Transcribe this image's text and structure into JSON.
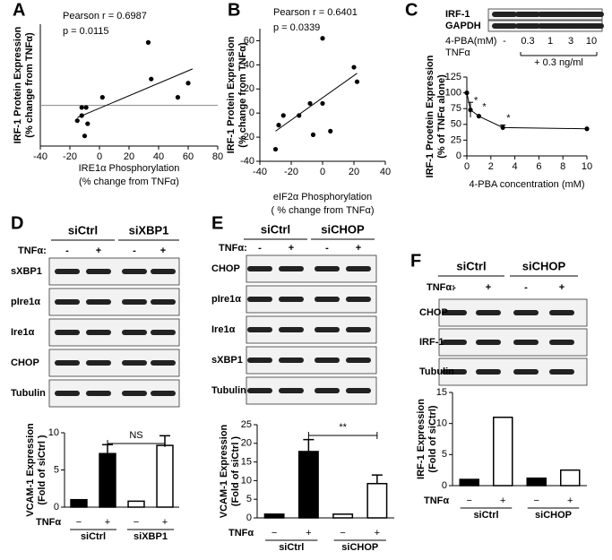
{
  "chart_data": [
    {
      "type": "scatter",
      "panel_label": "A",
      "annotations": [
        "Pearson r = 0.6987",
        "p = 0.0115"
      ],
      "xlabel": [
        "IRE1α Phosphorylation",
        "(% change from TNFα)"
      ],
      "ylabel": [
        "IRF-1 Protein Expression",
        "(% change from TNFα)"
      ],
      "x": [
        -15,
        -12,
        -12,
        -9,
        -8,
        -10,
        2,
        33,
        35,
        53,
        60
      ],
      "y": [
        -15,
        -10,
        -2,
        -2,
        -18,
        -30,
        8,
        62,
        26,
        8,
        22
      ],
      "xlim": [
        -40,
        80
      ],
      "xticks": [
        -40,
        -20,
        0,
        20,
        40,
        60,
        80
      ],
      "ylim": [
        -40,
        80
      ],
      "zero_line": true,
      "fit": {
        "x": [
          -15,
          63
        ],
        "y": [
          -12,
          36
        ]
      },
      "color": "#000000"
    },
    {
      "type": "scatter",
      "panel_label": "B",
      "annotations": [
        "Pearson r = 0.6401",
        "p = 0.0339"
      ],
      "xlabel": [
        "eIF2α Phosphorylation",
        "( % change  from TNFα)"
      ],
      "ylabel": [
        "IRF-1 Protein Expression",
        "(% change from TNFα)"
      ],
      "x": [
        -30,
        -28,
        -25,
        -15,
        -8,
        -6,
        0,
        0,
        5,
        20,
        22
      ],
      "y": [
        -30,
        -10,
        -2,
        -2,
        8,
        -18,
        62,
        8,
        -15,
        38,
        26
      ],
      "xlim": [
        -40,
        40
      ],
      "xticks": [
        -40,
        -20,
        0,
        20,
        40
      ],
      "ylim": [
        -40,
        70
      ],
      "yticks": [
        -40,
        -20,
        0,
        20,
        40,
        60
      ],
      "fit": {
        "x": [
          -30,
          22
        ],
        "y": [
          -15,
          33
        ]
      },
      "color": "#000000"
    },
    {
      "type": "line",
      "panel_label": "C",
      "xlabel": [
        "4-PBA concentration (mM)"
      ],
      "ylabel": [
        "IRF-1 Proetein Expression",
        "(% of TNFα alone)"
      ],
      "x": [
        0,
        0.3,
        1,
        3,
        10
      ],
      "values": [
        100,
        73,
        63,
        45,
        43
      ],
      "errors": [
        null,
        12,
        null,
        4,
        null
      ],
      "annotations": [
        "*",
        "*",
        "*"
      ],
      "xlim": [
        0,
        10
      ],
      "xticks": [
        0,
        2,
        4,
        6,
        8,
        10
      ],
      "ylim": [
        0,
        125
      ],
      "yticks": [
        0,
        25,
        50,
        75,
        100,
        125
      ],
      "color": "#000000",
      "blot": {
        "rows": [
          "IRF-1",
          "GAPDH"
        ],
        "dose_label": "4-PBA(mM)",
        "lanes": [
          "-",
          "0.3",
          "1",
          "3",
          "10"
        ],
        "treatment": "TNFα",
        "note": "+ 0.3 ng/ml"
      }
    },
    {
      "type": "bar",
      "panel_label": "D",
      "ylabel": [
        "VCAM-1 Expression",
        "(Fold of siCtrl )"
      ],
      "x_prefix": "TNFα",
      "categories": [
        "−",
        "+",
        "−",
        "+"
      ],
      "groups": [
        "siCtrl",
        "siXBP1"
      ],
      "values": [
        1,
        7.2,
        0.8,
        8.3
      ],
      "errors": [
        null,
        1.2,
        null,
        1.3
      ],
      "colors": [
        "#000000",
        "#000000",
        "#ffffff",
        "#ffffff"
      ],
      "comparison": "NS",
      "ylim": [
        0,
        10
      ],
      "yticks": [
        0,
        5,
        10
      ],
      "blot": {
        "groups": [
          "siCtrl",
          "siXBP1"
        ],
        "treatment": "TNFα:",
        "lanes": [
          "-",
          "+",
          "-",
          "+"
        ],
        "rows": [
          "sXBP1",
          "pIre1α",
          "Ire1α",
          "CHOP",
          "Tubulin"
        ]
      }
    },
    {
      "type": "bar",
      "panel_label": "E",
      "ylabel": [
        "VCAM-1 Expression",
        "(Fold of siCtrl )"
      ],
      "x_prefix": "TNFα",
      "categories": [
        "−",
        "+",
        "−",
        "+"
      ],
      "groups": [
        "siCtrl",
        "siCHOP"
      ],
      "values": [
        1,
        17.8,
        1,
        9.2
      ],
      "errors": [
        null,
        3.2,
        null,
        2.3
      ],
      "colors": [
        "#000000",
        "#000000",
        "#ffffff",
        "#ffffff"
      ],
      "comparison": "**",
      "ylim": [
        0,
        25
      ],
      "yticks": [
        0,
        5,
        10,
        15,
        20,
        25
      ],
      "blot": {
        "groups": [
          "siCtrl",
          "siCHOP"
        ],
        "treatment": "TNFα:",
        "lanes": [
          "-",
          "+",
          "-",
          "+"
        ],
        "rows": [
          "CHOP",
          "pIre1α",
          "Ire1α",
          "sXBP1",
          "Tubulin"
        ]
      }
    },
    {
      "type": "bar",
      "panel_label": "F",
      "ylabel": [
        "IRF-1 Expression",
        "(Fold of siCtrl)"
      ],
      "x_prefix": "TNFα",
      "categories": [
        "−",
        "+",
        "−",
        "+"
      ],
      "groups": [
        "siCtrl",
        "siCHOP"
      ],
      "values": [
        1,
        11,
        1.2,
        2.5
      ],
      "errors": [
        null,
        null,
        null,
        null
      ],
      "colors": [
        "#000000",
        "#ffffff",
        "#000000",
        "#ffffff"
      ],
      "ylim": [
        0,
        15
      ],
      "yticks": [
        0,
        5,
        10,
        15
      ],
      "blot": {
        "groups": [
          "siCtrl",
          "siCHOP"
        ],
        "treatment": "TNFα:",
        "lanes": [
          "-",
          "+",
          "-",
          "+"
        ],
        "rows": [
          "CHOP",
          "IRF-1",
          "Tubulin"
        ]
      }
    }
  ]
}
